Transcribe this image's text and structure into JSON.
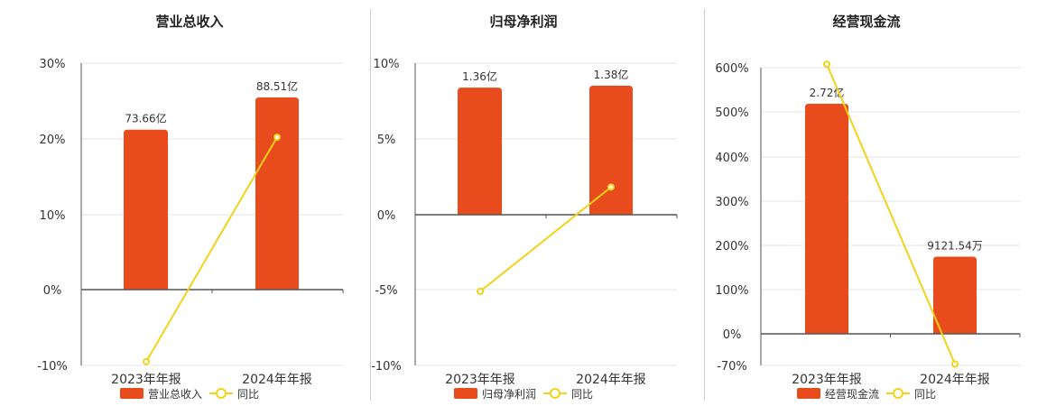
{
  "colors": {
    "bar": "#e84c1c",
    "line": "#f2d21a",
    "axis": "#555555",
    "grid": "#e6e6e6",
    "divider": "#d0d0d0"
  },
  "chart_data": [
    {
      "type": "bar",
      "title": "营业总收入",
      "categories": [
        "2023年年报",
        "2024年年报"
      ],
      "bar_series": {
        "name": "营业总收入",
        "values": [
          73.66,
          88.51
        ],
        "labels": [
          "73.66亿",
          "88.51亿"
        ],
        "unit": "亿"
      },
      "line_series": {
        "name": "同比",
        "values": [
          -9.5,
          20.2
        ],
        "unit": "%"
      },
      "y_axis": {
        "ticks": [
          "30%",
          "20%",
          "10%",
          "0%",
          "-10%"
        ],
        "range": [
          -10,
          30
        ]
      },
      "legend": {
        "position": "bottom"
      },
      "grid": true
    },
    {
      "type": "bar",
      "title": "归母净利润",
      "categories": [
        "2023年年报",
        "2024年年报"
      ],
      "bar_series": {
        "name": "归母净利润",
        "values": [
          1.36,
          1.38
        ],
        "labels": [
          "1.36亿",
          "1.38亿"
        ],
        "unit": "亿"
      },
      "line_series": {
        "name": "同比",
        "values": [
          -5.1,
          1.8
        ],
        "unit": "%"
      },
      "y_axis": {
        "ticks": [
          "10%",
          "5%",
          "0%",
          "-5%",
          "-10%"
        ],
        "range": [
          -10,
          10
        ]
      },
      "legend": {
        "position": "bottom"
      },
      "grid": true
    },
    {
      "type": "bar",
      "title": "经营现金流",
      "categories": [
        "2023年年报",
        "2024年年报"
      ],
      "bar_series": {
        "name": "经营现金流",
        "values": [
          2.72,
          0.912154
        ],
        "labels": [
          "2.72亿",
          "9121.54万"
        ],
        "unit": "亿"
      },
      "line_series": {
        "name": "同比",
        "values": [
          608,
          -67
        ],
        "unit": "%"
      },
      "y_axis": {
        "ticks": [
          "600%",
          "500%",
          "400%",
          "300%",
          "200%",
          "100%",
          "0%",
          "-70%"
        ],
        "range": [
          -70,
          610
        ]
      },
      "legend": {
        "position": "bottom"
      },
      "grid": true
    }
  ]
}
